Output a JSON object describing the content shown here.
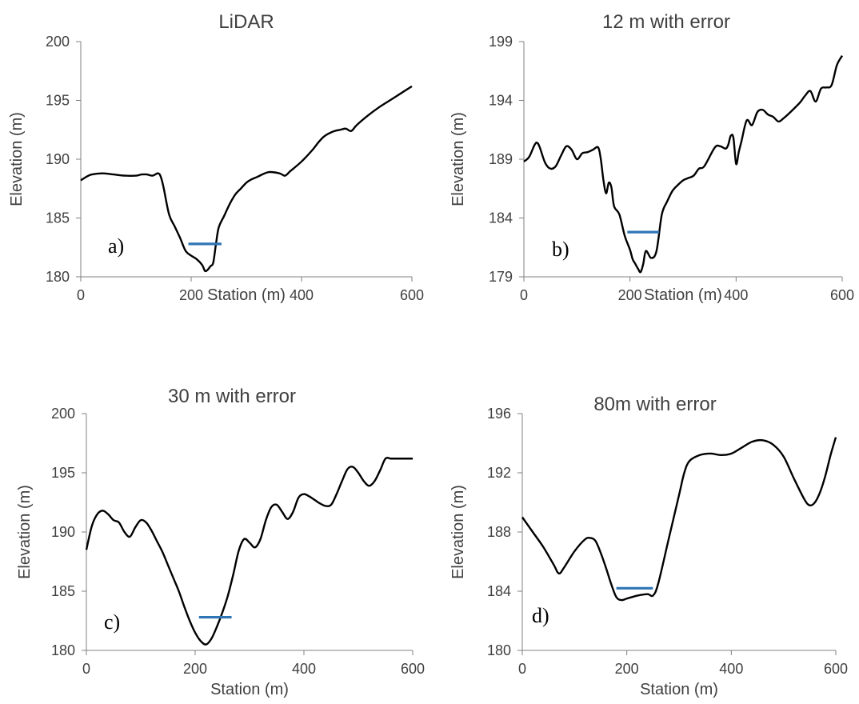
{
  "chart_data": [
    {
      "type": "line",
      "title": "LiDAR",
      "panel_label": "a)",
      "xlabel": "Station (m)",
      "ylabel": "Elevation (m)",
      "xlim": [
        0,
        600
      ],
      "ylim": [
        180,
        200
      ],
      "xticks": [
        0,
        200,
        400,
        600
      ],
      "yticks": [
        180,
        185,
        190,
        195,
        200
      ],
      "series": [
        {
          "color": "#000000",
          "x": [
            0,
            10,
            20,
            40,
            60,
            80,
            100,
            110,
            120,
            130,
            140,
            145,
            150,
            160,
            170,
            180,
            190,
            200,
            210,
            220,
            225,
            230,
            235,
            240,
            245,
            250,
            260,
            270,
            280,
            290,
            300,
            310,
            320,
            340,
            360,
            370,
            380,
            400,
            420,
            430,
            440,
            450,
            460,
            470,
            480,
            490,
            500,
            520,
            540,
            560,
            580,
            600
          ],
          "y": [
            188.2,
            188.5,
            188.7,
            188.8,
            188.7,
            188.6,
            188.6,
            188.7,
            188.7,
            188.6,
            188.8,
            188.5,
            187.6,
            185.3,
            184.3,
            183.3,
            182.2,
            181.8,
            181.5,
            181.0,
            180.5,
            180.6,
            180.9,
            181.2,
            182.8,
            184.2,
            185.2,
            186.2,
            187.0,
            187.5,
            188.0,
            188.3,
            188.5,
            188.9,
            188.8,
            188.6,
            189.0,
            189.8,
            190.8,
            191.4,
            191.9,
            192.2,
            192.4,
            192.5,
            192.6,
            192.4,
            192.9,
            193.7,
            194.4,
            195.0,
            195.6,
            196.2
          ]
        }
      ],
      "water_level": {
        "color": "#2E75B6",
        "y": 182.8,
        "x": [
          195,
          255
        ]
      }
    },
    {
      "type": "line",
      "title": "12 m with error",
      "panel_label": "b)",
      "xlabel": "Station (m)",
      "ylabel": "Elevation (m)",
      "xlim": [
        0,
        600
      ],
      "ylim": [
        179,
        199
      ],
      "xticks": [
        0,
        200,
        400,
        600
      ],
      "yticks": [
        179,
        184,
        189,
        194,
        199
      ],
      "series": [
        {
          "color": "#000000",
          "x": [
            0,
            10,
            20,
            25,
            30,
            40,
            50,
            60,
            70,
            80,
            90,
            100,
            110,
            120,
            130,
            140,
            145,
            150,
            155,
            160,
            165,
            170,
            180,
            190,
            200,
            205,
            210,
            215,
            220,
            225,
            230,
            240,
            250,
            260,
            270,
            280,
            290,
            300,
            310,
            320,
            330,
            340,
            360,
            370,
            380,
            385,
            390,
            395,
            400,
            405,
            410,
            420,
            430,
            440,
            450,
            460,
            470,
            480,
            490,
            500,
            520,
            530,
            540,
            550,
            560,
            570,
            580,
            590,
            600
          ],
          "y": [
            188.8,
            189.2,
            190.2,
            190.4,
            190.0,
            188.7,
            188.2,
            188.4,
            189.3,
            190.1,
            189.8,
            189.0,
            189.5,
            189.6,
            189.8,
            190.0,
            189.0,
            187.2,
            186.1,
            187.0,
            186.6,
            185.0,
            184.3,
            182.5,
            181.3,
            180.5,
            180.1,
            179.7,
            179.4,
            180.1,
            181.2,
            180.6,
            181.2,
            184.3,
            185.4,
            186.3,
            186.8,
            187.2,
            187.4,
            187.6,
            188.2,
            188.4,
            190.0,
            190.1,
            189.9,
            190.2,
            191.0,
            190.8,
            188.6,
            189.6,
            190.5,
            192.3,
            191.9,
            193.0,
            193.2,
            192.8,
            192.6,
            192.2,
            192.5,
            192.9,
            193.8,
            194.4,
            194.8,
            193.9,
            195.0,
            195.1,
            195.3,
            197.0,
            197.8
          ]
        }
      ],
      "water_level": {
        "color": "#2E75B6",
        "y": 182.8,
        "x": [
          195,
          255
        ]
      }
    },
    {
      "type": "line",
      "title": "30 m with error",
      "panel_label": "c)",
      "xlabel": "Station (m)",
      "ylabel": "Elevation (m)",
      "xlim": [
        0,
        600
      ],
      "ylim": [
        180,
        200
      ],
      "xticks": [
        0,
        200,
        400,
        600
      ],
      "yticks": [
        180,
        185,
        190,
        195,
        200
      ],
      "series": [
        {
          "color": "#000000",
          "x": [
            0,
            10,
            20,
            30,
            40,
            50,
            60,
            70,
            80,
            90,
            100,
            110,
            120,
            130,
            140,
            150,
            160,
            170,
            180,
            190,
            200,
            210,
            220,
            230,
            240,
            250,
            260,
            270,
            280,
            290,
            300,
            310,
            320,
            330,
            340,
            350,
            360,
            370,
            380,
            390,
            400,
            410,
            420,
            430,
            440,
            450,
            460,
            470,
            480,
            490,
            500,
            510,
            520,
            530,
            540,
            550,
            560,
            570,
            580,
            590,
            600
          ],
          "y": [
            188.5,
            190.5,
            191.5,
            191.8,
            191.5,
            191.0,
            190.8,
            190.0,
            189.6,
            190.4,
            191.0,
            190.8,
            190.1,
            189.2,
            188.3,
            187.2,
            186.1,
            185.0,
            183.7,
            182.5,
            181.5,
            180.8,
            180.5,
            181.0,
            182.0,
            183.2,
            184.6,
            186.4,
            188.4,
            189.4,
            189.1,
            188.7,
            189.4,
            191.0,
            192.1,
            192.3,
            191.7,
            191.1,
            191.7,
            192.9,
            193.2,
            193.0,
            192.7,
            192.4,
            192.2,
            192.3,
            193.2,
            194.3,
            195.3,
            195.5,
            195.0,
            194.3,
            193.9,
            194.3,
            195.2,
            196.2,
            196.2,
            196.2,
            196.2,
            196.2,
            196.2
          ]
        }
      ],
      "water_level": {
        "color": "#2E75B6",
        "y": 182.8,
        "x": [
          207,
          267
        ]
      }
    },
    {
      "type": "line",
      "title": "80m with error",
      "panel_label": "d)",
      "xlabel": "Station (m)",
      "ylabel": "Elevation (m)",
      "xlim": [
        0,
        600
      ],
      "ylim": [
        180,
        196
      ],
      "xticks": [
        0,
        200,
        400,
        600
      ],
      "yticks": [
        180,
        184,
        188,
        192,
        196
      ],
      "series": [
        {
          "color": "#000000",
          "x": [
            0,
            20,
            40,
            60,
            70,
            80,
            100,
            120,
            130,
            140,
            150,
            160,
            170,
            180,
            190,
            200,
            220,
            240,
            250,
            260,
            280,
            300,
            310,
            320,
            340,
            360,
            380,
            400,
            420,
            440,
            460,
            480,
            500,
            520,
            540,
            550,
            560,
            570,
            580,
            590,
            600
          ],
          "y": [
            189.0,
            188.0,
            187.0,
            185.8,
            185.2,
            185.6,
            186.7,
            187.5,
            187.6,
            187.4,
            186.6,
            185.6,
            184.5,
            183.6,
            183.4,
            183.5,
            183.7,
            183.8,
            183.7,
            184.5,
            187.5,
            190.5,
            192.0,
            192.8,
            193.2,
            193.3,
            193.2,
            193.3,
            193.7,
            194.1,
            194.2,
            193.9,
            193.1,
            191.6,
            190.2,
            189.8,
            190.0,
            190.7,
            191.8,
            193.2,
            194.4
          ]
        }
      ],
      "water_level": {
        "color": "#2E75B6",
        "y": 184.2,
        "x": [
          180,
          250
        ]
      }
    }
  ]
}
